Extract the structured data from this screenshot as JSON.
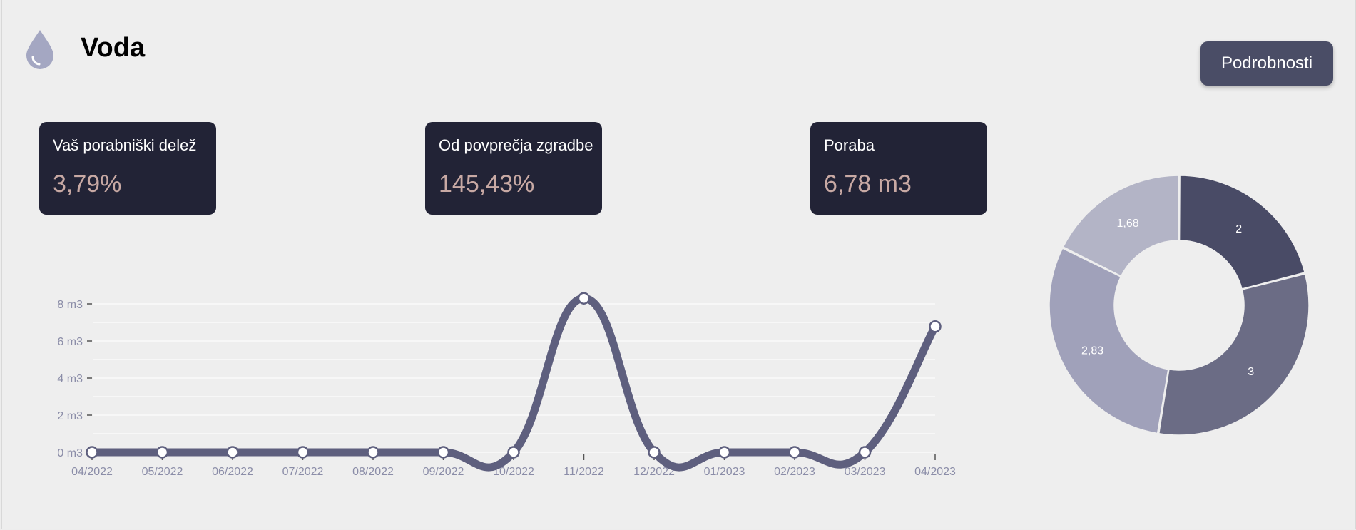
{
  "header": {
    "title": "Voda",
    "icon": "water-drop-icon",
    "details_button": "Podrobnosti"
  },
  "stats": [
    {
      "label": "Vaš porabniški delež",
      "value": "3,79%"
    },
    {
      "label": "Od povprečja zgradbe",
      "value": "145,43%"
    },
    {
      "label": "Poraba",
      "value": "6,78 m3"
    }
  ],
  "colors": {
    "background": "#eeeeee",
    "card": "#222336",
    "card_value": "#c8a9a4",
    "button": "#4a4d66",
    "line": "#5e5f7e",
    "axis_text": "#8b8da8"
  },
  "chart_data": [
    {
      "type": "line",
      "x": [
        "04/2022",
        "05/2022",
        "06/2022",
        "07/2022",
        "08/2022",
        "09/2022",
        "10/2022",
        "11/2022",
        "12/2022",
        "01/2023",
        "02/2023",
        "03/2023",
        "04/2023"
      ],
      "series": [
        {
          "values": [
            0,
            0,
            0,
            0,
            0,
            0,
            0,
            8.3,
            0,
            0,
            0,
            0,
            6.78
          ]
        }
      ],
      "y_ticks": [
        "0 m3",
        "2 m3",
        "4 m3",
        "6 m3",
        "8 m3"
      ],
      "ylim": [
        0,
        8
      ],
      "grid": true,
      "smooth": true
    },
    {
      "type": "pie",
      "donut": true,
      "values": [
        2,
        3,
        2.83,
        1.68
      ],
      "labels": [
        "2",
        "3",
        "2,83",
        "1,68"
      ],
      "colors": [
        "#494b66",
        "#6b6c85",
        "#a0a1ba",
        "#b3b4c6"
      ]
    }
  ]
}
